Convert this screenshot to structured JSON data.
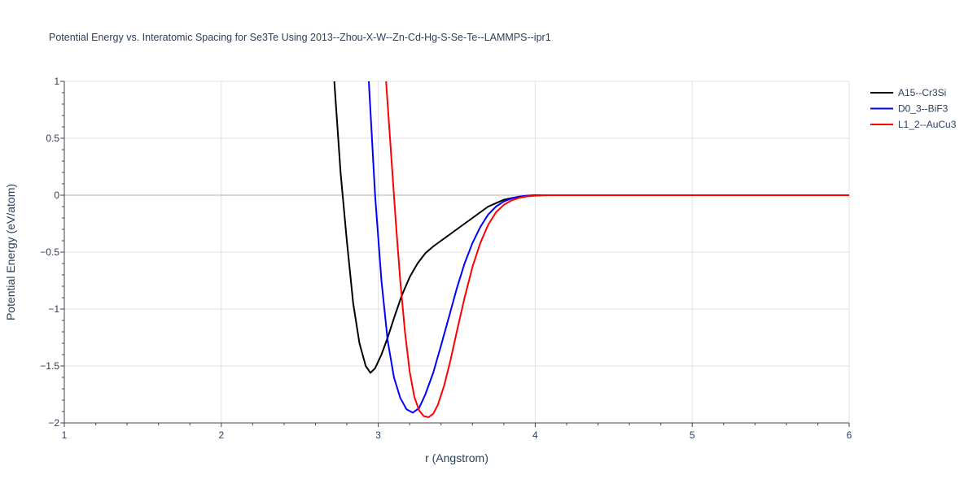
{
  "chart_data": {
    "type": "line",
    "title": "Potential Energy vs. Interatomic Spacing for Se3Te Using 2013--Zhou-X-W--Zn-Cd-Hg-S-Se-Te--LAMMPS--ipr1",
    "xlabel": "r (Angstrom)",
    "ylabel": "Potential Energy (eV/atom)",
    "xlim": [
      1,
      6
    ],
    "ylim": [
      -2,
      1
    ],
    "xticks": [
      1,
      2,
      3,
      4,
      5,
      6
    ],
    "xtick_labels": [
      "1",
      "2",
      "3",
      "4",
      "5",
      "6"
    ],
    "yticks": [
      -2,
      -1.5,
      -1,
      -0.5,
      0,
      0.5,
      1
    ],
    "ytick_labels": [
      "−2",
      "−1.5",
      "−1",
      "−0.5",
      "0",
      "0.5",
      "1"
    ],
    "grid": true,
    "legend_position": "top-right, outside plot",
    "series": [
      {
        "name": "A15--Cr3Si",
        "color": "#000000",
        "x": [
          2.72,
          2.76,
          2.8,
          2.84,
          2.88,
          2.92,
          2.95,
          2.98,
          3.02,
          3.06,
          3.1,
          3.15,
          3.2,
          3.25,
          3.3,
          3.35,
          3.4,
          3.45,
          3.5,
          3.55,
          3.6,
          3.65,
          3.7,
          3.75,
          3.8,
          3.85,
          3.9,
          3.95,
          4.0,
          4.1,
          4.2,
          4.5,
          5.0,
          6.0
        ],
        "y": [
          1.0,
          0.2,
          -0.4,
          -0.95,
          -1.3,
          -1.5,
          -1.56,
          -1.52,
          -1.4,
          -1.25,
          -1.08,
          -0.88,
          -0.72,
          -0.6,
          -0.51,
          -0.45,
          -0.4,
          -0.35,
          -0.3,
          -0.25,
          -0.2,
          -0.15,
          -0.1,
          -0.07,
          -0.04,
          -0.025,
          -0.012,
          -0.004,
          0.0,
          0.0,
          0.0,
          0.0,
          0.0,
          0.0
        ]
      },
      {
        "name": "D0_3--BiF3",
        "color": "#0000ff",
        "x": [
          2.94,
          2.98,
          3.02,
          3.06,
          3.1,
          3.14,
          3.18,
          3.22,
          3.26,
          3.3,
          3.35,
          3.4,
          3.45,
          3.5,
          3.55,
          3.6,
          3.65,
          3.7,
          3.75,
          3.8,
          3.85,
          3.9,
          3.95,
          4.0,
          4.05,
          4.1,
          4.2,
          4.5,
          5.0,
          6.0
        ],
        "y": [
          1.0,
          0.0,
          -0.75,
          -1.28,
          -1.6,
          -1.78,
          -1.88,
          -1.91,
          -1.87,
          -1.75,
          -1.56,
          -1.32,
          -1.07,
          -0.82,
          -0.6,
          -0.42,
          -0.28,
          -0.17,
          -0.1,
          -0.055,
          -0.028,
          -0.012,
          -0.005,
          -0.002,
          0.0,
          0.0,
          0.0,
          0.0,
          0.0,
          0.0
        ]
      },
      {
        "name": "L1_2--AuCu3",
        "color": "#ff0000",
        "x": [
          3.05,
          3.08,
          3.11,
          3.14,
          3.17,
          3.2,
          3.23,
          3.26,
          3.29,
          3.32,
          3.35,
          3.38,
          3.42,
          3.46,
          3.5,
          3.55,
          3.6,
          3.65,
          3.7,
          3.75,
          3.8,
          3.85,
          3.9,
          3.95,
          4.0,
          4.05,
          4.1,
          4.2,
          4.5,
          5.0,
          6.0
        ],
        "y": [
          1.0,
          0.4,
          -0.2,
          -0.75,
          -1.2,
          -1.55,
          -1.77,
          -1.89,
          -1.94,
          -1.95,
          -1.92,
          -1.84,
          -1.67,
          -1.45,
          -1.2,
          -0.9,
          -0.63,
          -0.42,
          -0.26,
          -0.15,
          -0.085,
          -0.045,
          -0.022,
          -0.01,
          -0.004,
          -0.001,
          0.0,
          0.0,
          0.0,
          0.0,
          0.0
        ]
      }
    ]
  }
}
